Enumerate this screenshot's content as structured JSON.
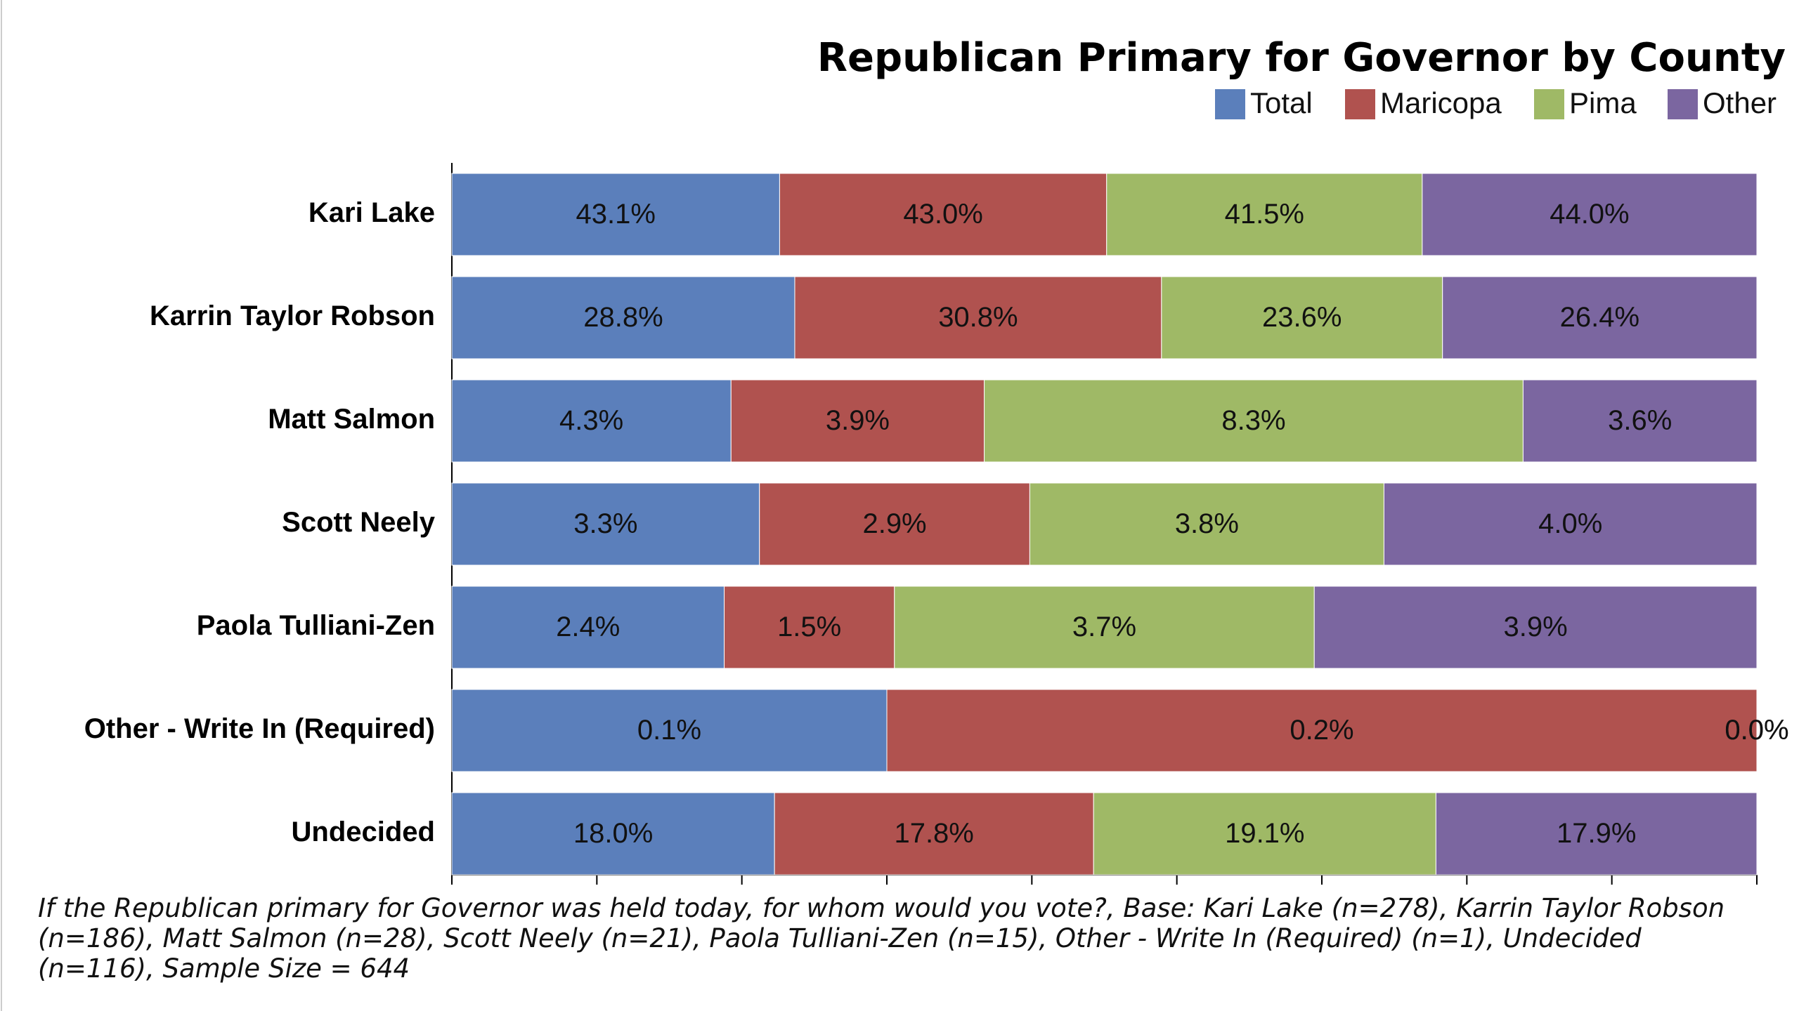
{
  "chart_data": {
    "type": "stacked-bar-100",
    "title": "Republican Primary for Governor by County",
    "categories": [
      "Kari Lake",
      "Karrin Taylor Robson",
      "Matt Salmon",
      "Scott Neely",
      "Paola Tulliani-Zen",
      "Other - Write In (Required)",
      "Undecided"
    ],
    "series": [
      {
        "name": "Total",
        "color": "#5b7fbb",
        "values": [
          43.1,
          28.8,
          4.3,
          3.3,
          2.4,
          0.1,
          18.0
        ],
        "value_labels": [
          "43.1%",
          "28.8%",
          "4.3%",
          "3.3%",
          "2.4%",
          "0.1%",
          "18.0%"
        ]
      },
      {
        "name": "Maricopa",
        "color": "#b0524f",
        "values": [
          43.0,
          30.8,
          3.9,
          2.9,
          1.5,
          0.2,
          17.8
        ],
        "value_labels": [
          "43.0%",
          "30.8%",
          "3.9%",
          "2.9%",
          "1.5%",
          "0.2%",
          "17.8%"
        ]
      },
      {
        "name": "Pima",
        "color": "#9fb966",
        "values": [
          41.5,
          23.6,
          8.3,
          3.8,
          3.7,
          0.0,
          19.1
        ],
        "value_labels": [
          "41.5%",
          "23.6%",
          "8.3%",
          "3.8%",
          "3.7%",
          "0.0%",
          "19.1%"
        ]
      },
      {
        "name": "Other",
        "color": "#7b66a0",
        "values": [
          44.0,
          26.4,
          3.6,
          4.0,
          3.9,
          0.0,
          17.9
        ],
        "value_labels": [
          "44.0%",
          "26.4%",
          "3.6%",
          "4.0%",
          "3.9%",
          "0.0%",
          "17.9%"
        ]
      }
    ],
    "footnote": "If the Republican primary for Governor was held today, for whom would you vote?, Base: Kari Lake (n=278), Karrin Taylor Robson (n=186), Matt Salmon (n=28), Scott Neely (n=21), Paola Tulliani-Zen (n=15), Other - Write In (Required) (n=1), Undecided (n=116), Sample Size = 644"
  }
}
